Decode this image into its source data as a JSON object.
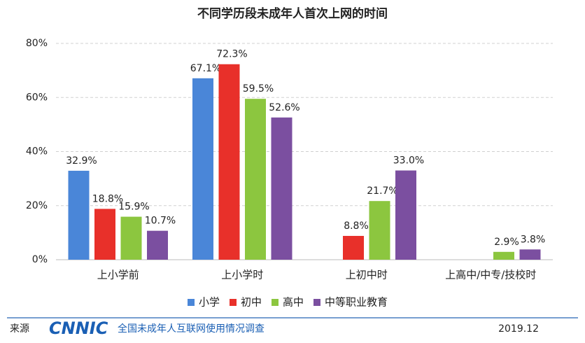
{
  "chart_data": {
    "type": "bar",
    "title": "不同学历段未成年人首次上网的时间",
    "categories": [
      "上小学前",
      "上小学时",
      "上初中时",
      "上高中/中专/技校时"
    ],
    "series": [
      {
        "name": "小学",
        "color": "#4a86d8",
        "values": [
          32.9,
          67.1,
          null,
          null
        ],
        "value_labels": [
          "32.9%",
          "67.1%",
          null,
          null
        ]
      },
      {
        "name": "初中",
        "color": "#e8302a",
        "values": [
          18.8,
          72.3,
          8.8,
          null
        ],
        "value_labels": [
          "18.8%",
          "72.3%",
          "8.8%",
          null
        ]
      },
      {
        "name": "高中",
        "color": "#8cc63f",
        "values": [
          15.9,
          59.5,
          21.7,
          2.9
        ],
        "value_labels": [
          "15.9%",
          "59.5%",
          "21.7%",
          "2.9%"
        ]
      },
      {
        "name": "中等职业教育",
        "color": "#7b4fa0",
        "values": [
          10.7,
          52.6,
          33.0,
          3.8
        ],
        "value_labels": [
          "10.7%",
          "52.6%",
          "33.0%",
          "3.8%"
        ]
      }
    ],
    "ylim": [
      0,
      80
    ],
    "yticks": [
      {
        "value": 0,
        "label": "0%"
      },
      {
        "value": 20,
        "label": "20%"
      },
      {
        "value": 40,
        "label": "40%"
      },
      {
        "value": 60,
        "label": "60%"
      },
      {
        "value": 80,
        "label": "80%"
      }
    ],
    "grid": true,
    "legend": "bottom"
  },
  "footer": {
    "source_label": "来源",
    "logo": "CNNIC",
    "survey": "全国未成年人互联网使用情况调查",
    "date": "2019.12"
  }
}
